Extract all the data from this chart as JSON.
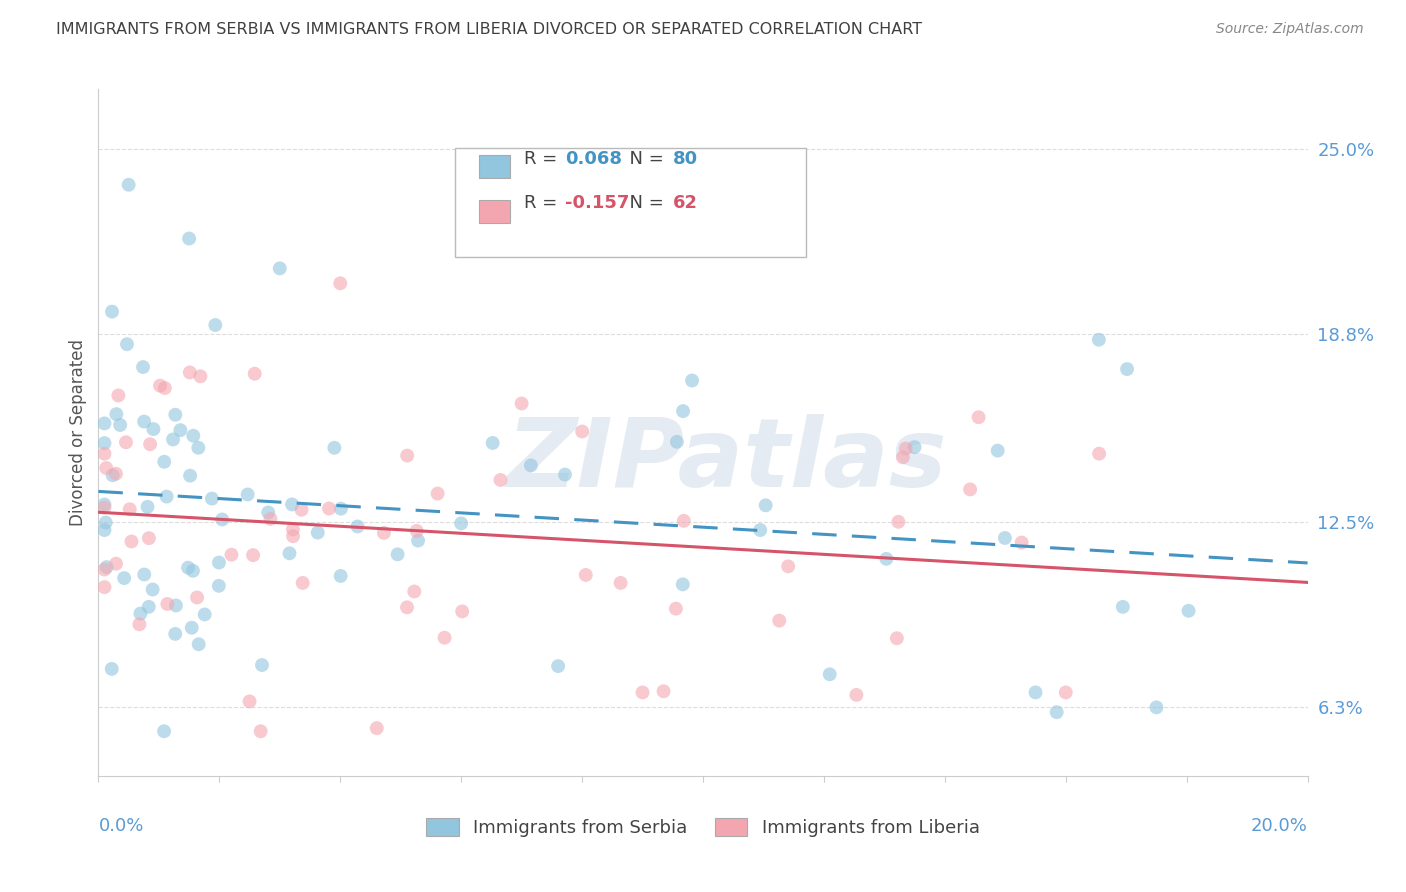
{
  "title": "IMMIGRANTS FROM SERBIA VS IMMIGRANTS FROM LIBERIA DIVORCED OR SEPARATED CORRELATION CHART",
  "source": "Source: ZipAtlas.com",
  "ylabel": "Divorced or Separated",
  "x_min": 0.0,
  "x_max": 0.2,
  "y_min": 0.04,
  "y_max": 0.27,
  "y_ticks": [
    0.063,
    0.125,
    0.188,
    0.25
  ],
  "y_tick_labels": [
    "6.3%",
    "12.5%",
    "18.8%",
    "25.0%"
  ],
  "serbia_color": "#92c5de",
  "liberia_color": "#f4a6b0",
  "serbia_line_color": "#4393c3",
  "liberia_line_color": "#d6546a",
  "serbia_R": 0.068,
  "serbia_N": 80,
  "liberia_R": -0.157,
  "liberia_N": 62,
  "legend_label_1": "Immigrants from Serbia",
  "legend_label_2": "Immigrants from Liberia",
  "watermark": "ZIPatlas",
  "tick_color": "#5b9bd5",
  "axis_label_color": "#5b9bd5",
  "grid_color": "#dddddd",
  "title_color": "#404040",
  "source_color": "#888888"
}
